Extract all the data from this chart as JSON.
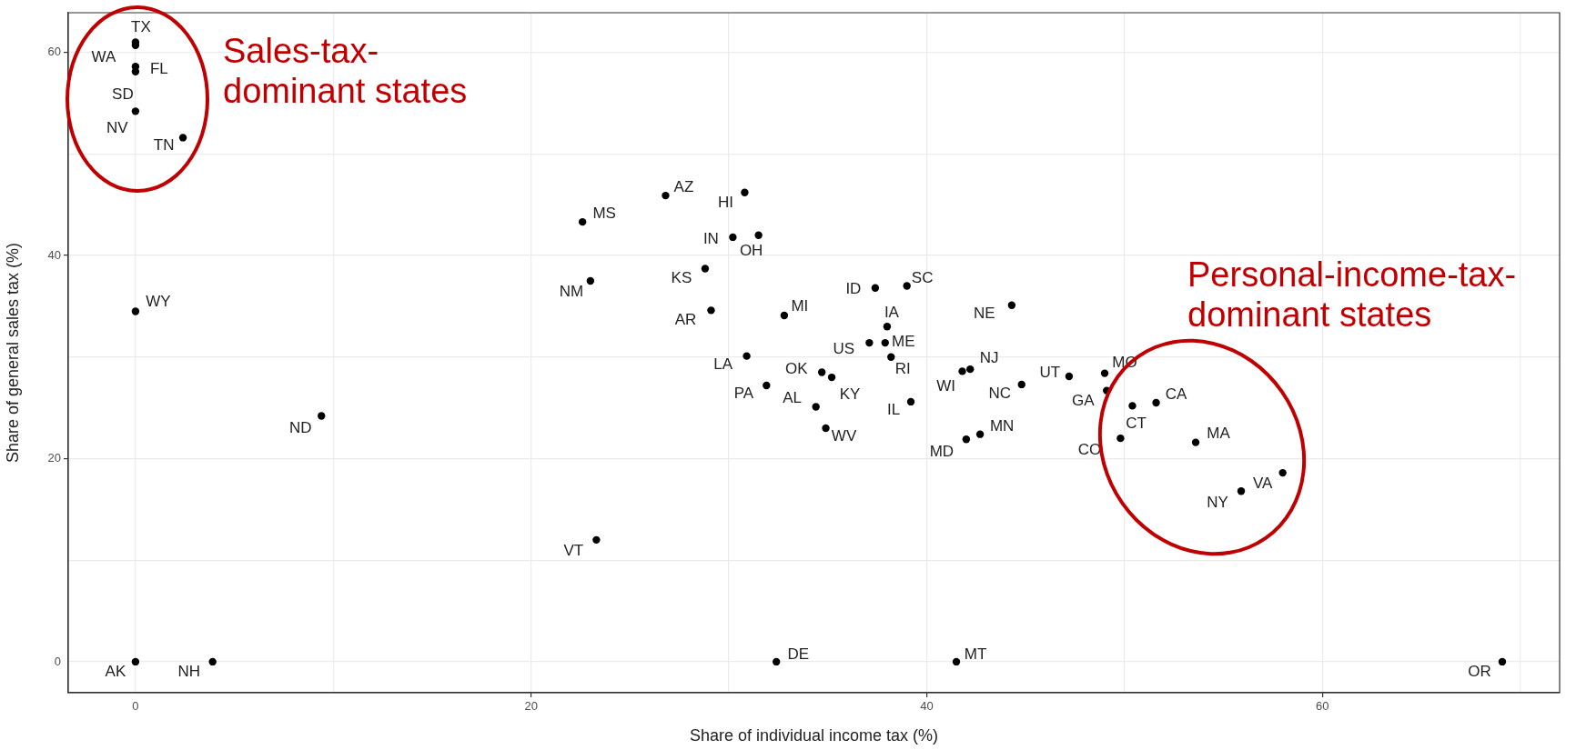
{
  "chart_data": {
    "type": "scatter",
    "xlabel": "Share of individual income tax (%)",
    "ylabel": "Share of general sales tax (%)",
    "x": [
      0,
      0,
      0,
      0,
      0,
      2.4,
      0,
      22.6,
      26.8,
      30.8,
      30.2,
      31.5,
      28.8,
      23.0,
      29.1,
      32.8,
      37.4,
      39.0,
      44.3,
      38.0,
      37.1,
      37.9,
      38.2,
      30.9,
      34.7,
      35.2,
      31.9,
      34.4,
      34.9,
      42.2,
      41.8,
      39.2,
      42.0,
      42.7,
      47.2,
      44.8,
      49.0,
      49.1,
      50.4,
      51.6,
      49.8,
      53.6,
      55.9,
      58.0,
      9.4,
      23.3,
      0,
      3.9,
      32.4,
      41.5,
      69.1
    ],
    "series": [
      {
        "color": "#000000",
        "values": [
          61.0,
          60.7,
          58.6,
          58.1,
          54.2,
          51.6,
          34.5,
          43.3,
          45.9,
          46.2,
          41.8,
          42.0,
          38.7,
          37.5,
          34.6,
          34.1,
          36.8,
          37.0,
          35.1,
          33.0,
          31.4,
          31.4,
          30.0,
          30.1,
          28.5,
          28.0,
          27.2,
          25.1,
          23.0,
          28.8,
          28.6,
          25.6,
          21.9,
          22.4,
          28.1,
          27.3,
          28.4,
          26.7,
          25.2,
          25.5,
          22.0,
          21.6,
          16.8,
          18.6,
          24.2,
          12.0,
          0,
          0,
          0,
          0,
          0
        ]
      }
    ],
    "xlim": [
      -3.4,
      72
    ],
    "ylim": [
      -3.05,
      63.9
    ],
    "xticks": [
      0,
      {
        "value": 10,
        "label": null
      },
      20,
      {
        "value": 30,
        "label": null
      },
      40,
      {
        "value": 50,
        "label": null
      },
      60,
      {
        "value": 70,
        "label": null
      }
    ],
    "yticks": [
      0,
      {
        "value": 10,
        "label": null
      },
      20,
      {
        "value": 30,
        "label": null
      },
      40,
      {
        "value": 50,
        "label": null
      },
      60
    ],
    "grid": true,
    "marker": "circle",
    "legend": false,
    "annotations": [
      {
        "text": "TX",
        "x": 0,
        "y": 61.0
      },
      {
        "text": "WA",
        "x": 0,
        "y": 60.7
      },
      {
        "text": "FL",
        "x": 0,
        "y": 58.6
      },
      {
        "text": "SD",
        "x": 0,
        "y": 58.1
      },
      {
        "text": "NV",
        "x": 0,
        "y": 54.2
      },
      {
        "text": "TN",
        "x": 2.4,
        "y": 51.6
      },
      {
        "text": "WY",
        "x": 0,
        "y": 34.5
      },
      {
        "text": "MS",
        "x": 22.6,
        "y": 43.3
      },
      {
        "text": "AZ",
        "x": 26.8,
        "y": 45.9
      },
      {
        "text": "HI",
        "x": 30.8,
        "y": 46.2
      },
      {
        "text": "IN",
        "x": 30.2,
        "y": 41.8
      },
      {
        "text": "OH",
        "x": 31.5,
        "y": 42.0
      },
      {
        "text": "KS",
        "x": 28.8,
        "y": 38.7
      },
      {
        "text": "NM",
        "x": 23.0,
        "y": 37.5
      },
      {
        "text": "AR",
        "x": 29.1,
        "y": 34.6
      },
      {
        "text": "MI",
        "x": 32.8,
        "y": 34.1
      },
      {
        "text": "ID",
        "x": 37.4,
        "y": 36.8
      },
      {
        "text": "SC",
        "x": 39.0,
        "y": 37.0
      },
      {
        "text": "NE",
        "x": 44.3,
        "y": 35.1
      },
      {
        "text": "IA",
        "x": 38.0,
        "y": 33.0
      },
      {
        "text": "US",
        "x": 37.1,
        "y": 31.4
      },
      {
        "text": "ME",
        "x": 37.9,
        "y": 31.4
      },
      {
        "text": "RI",
        "x": 38.2,
        "y": 30.0
      },
      {
        "text": "LA",
        "x": 30.9,
        "y": 30.1
      },
      {
        "text": "OK",
        "x": 34.7,
        "y": 28.5
      },
      {
        "text": "KY",
        "x": 35.2,
        "y": 28.0
      },
      {
        "text": "PA",
        "x": 31.9,
        "y": 27.2
      },
      {
        "text": "AL",
        "x": 34.4,
        "y": 25.1
      },
      {
        "text": "WV",
        "x": 34.9,
        "y": 23.0
      },
      {
        "text": "NJ",
        "x": 42.2,
        "y": 28.8
      },
      {
        "text": "WI",
        "x": 41.8,
        "y": 28.6
      },
      {
        "text": "IL",
        "x": 39.2,
        "y": 25.6
      },
      {
        "text": "MD",
        "x": 42.0,
        "y": 21.9
      },
      {
        "text": "MN",
        "x": 42.7,
        "y": 22.4
      },
      {
        "text": "UT",
        "x": 47.2,
        "y": 28.1
      },
      {
        "text": "NC",
        "x": 44.8,
        "y": 27.3
      },
      {
        "text": "MO",
        "x": 49.0,
        "y": 28.4
      },
      {
        "text": "GA",
        "x": 49.1,
        "y": 26.7
      },
      {
        "text": "CT",
        "x": 50.4,
        "y": 25.2
      },
      {
        "text": "CA",
        "x": 51.6,
        "y": 25.5
      },
      {
        "text": "CO",
        "x": 49.8,
        "y": 22.0
      },
      {
        "text": "MA",
        "x": 53.6,
        "y": 21.6
      },
      {
        "text": "NY",
        "x": 55.9,
        "y": 16.8
      },
      {
        "text": "VA",
        "x": 58.0,
        "y": 18.6
      },
      {
        "text": "ND",
        "x": 9.4,
        "y": 24.2
      },
      {
        "text": "VT",
        "x": 23.3,
        "y": 12.0
      },
      {
        "text": "AK",
        "x": 0,
        "y": 0
      },
      {
        "text": "NH",
        "x": 3.9,
        "y": 0
      },
      {
        "text": "DE",
        "x": 32.4,
        "y": 0
      },
      {
        "text": "MT",
        "x": 41.5,
        "y": 0
      },
      {
        "text": "OR",
        "x": 69.1,
        "y": 0
      },
      "Sales-tax-dominant states",
      "Personal-income-tax-dominant states"
    ]
  }
}
